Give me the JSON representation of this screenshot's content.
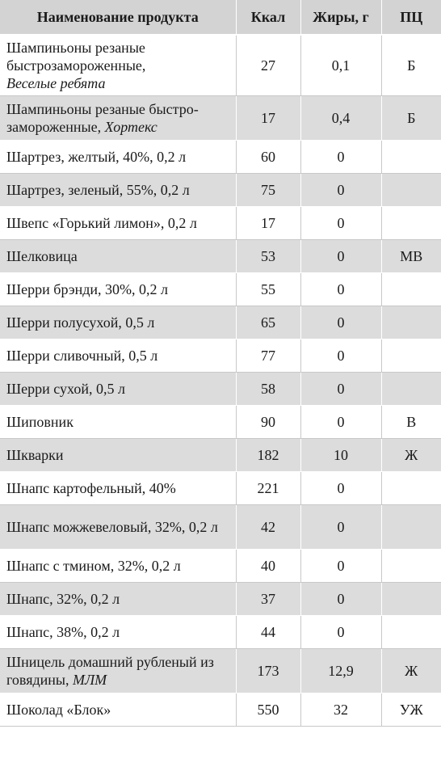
{
  "headers": {
    "name": "Наименование продукта",
    "kcal": "Ккал",
    "fat": "Жиры, г",
    "pc": "ПЦ"
  },
  "rows": [
    {
      "name": "Шампиньоны резаные быстрозамороженные,",
      "brand": "Веселые ребята",
      "kcal": "27",
      "fat": "0,1",
      "pc": "Б"
    },
    {
      "name": "Шампиньоны резаные быстро-замороженные,",
      "brand": "Хортекс",
      "kcal": "17",
      "fat": "0,4",
      "pc": "Б"
    },
    {
      "name": "Шартрез, желтый, 40%, 0,2 л",
      "brand": "",
      "kcal": "60",
      "fat": "0",
      "pc": ""
    },
    {
      "name": "Шартрез, зеленый, 55%, 0,2 л",
      "brand": "",
      "kcal": "75",
      "fat": "0",
      "pc": ""
    },
    {
      "name": "Швепс «Горький лимон», 0,2 л",
      "brand": "",
      "kcal": "17",
      "fat": "0",
      "pc": ""
    },
    {
      "name": "Шелковица",
      "brand": "",
      "kcal": "53",
      "fat": "0",
      "pc": "МВ"
    },
    {
      "name": "Шерри брэнди, 30%, 0,2 л",
      "brand": "",
      "kcal": "55",
      "fat": "0",
      "pc": ""
    },
    {
      "name": "Шерри полусухой, 0,5 л",
      "brand": "",
      "kcal": "65",
      "fat": "0",
      "pc": ""
    },
    {
      "name": "Шерри сливочный, 0,5 л",
      "brand": "",
      "kcal": "77",
      "fat": "0",
      "pc": ""
    },
    {
      "name": "Шерри сухой, 0,5 л",
      "brand": "",
      "kcal": "58",
      "fat": "0",
      "pc": ""
    },
    {
      "name": "Шиповник",
      "brand": "",
      "kcal": "90",
      "fat": "0",
      "pc": "В"
    },
    {
      "name": "Шкварки",
      "brand": "",
      "kcal": "182",
      "fat": "10",
      "pc": "Ж"
    },
    {
      "name": "Шнапс картофельный, 40%",
      "brand": "",
      "kcal": "221",
      "fat": "0",
      "pc": ""
    },
    {
      "name": "Шнапс можжевеловый, 32%, 0,2 л",
      "brand": "",
      "kcal": "42",
      "fat": "0",
      "pc": ""
    },
    {
      "name": "Шнапс с тмином, 32%, 0,2 л",
      "brand": "",
      "kcal": "40",
      "fat": "0",
      "pc": ""
    },
    {
      "name": "Шнапс, 32%, 0,2 л",
      "brand": "",
      "kcal": "37",
      "fat": "0",
      "pc": ""
    },
    {
      "name": "Шнапс, 38%, 0,2 л",
      "brand": "",
      "kcal": "44",
      "fat": "0",
      "pc": ""
    },
    {
      "name": "Шницель домашний рубленый из говядины,",
      "brand": "МЛМ",
      "kcal": "173",
      "fat": "12,9",
      "pc": "Ж"
    },
    {
      "name": "Шоколад «Блок»",
      "brand": "",
      "kcal": "550",
      "fat": "32",
      "pc": "УЖ"
    }
  ]
}
